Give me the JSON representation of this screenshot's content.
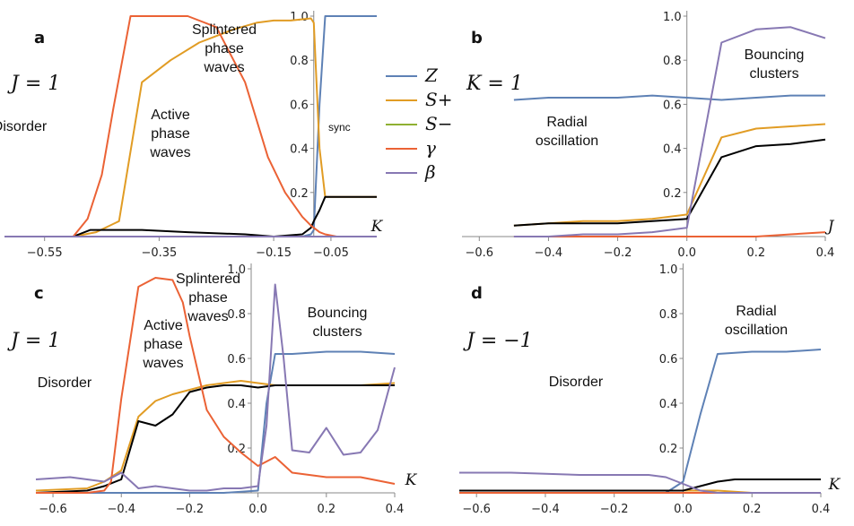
{
  "legend": {
    "items": [
      {
        "key": "Z",
        "label": "Z",
        "color": "#5e81b5"
      },
      {
        "key": "Sp",
        "label": "S+",
        "color": "#e19c24"
      },
      {
        "key": "Sm",
        "label": "S−",
        "color": "#8fb032"
      },
      {
        "key": "gamma",
        "label": "γ",
        "color": "#eb6235"
      },
      {
        "key": "beta",
        "label": "β",
        "color": "#8778b3"
      }
    ]
  },
  "chart_data": [
    {
      "panel": "a",
      "type": "line",
      "param_text": "J = 1",
      "xlabel": "K",
      "xlim": [
        -0.62,
        0.03
      ],
      "ylim": [
        0,
        1.0
      ],
      "xticks": [
        -0.55,
        -0.35,
        -0.15,
        -0.05
      ],
      "xtick_labels": [
        "−0.55",
        "−0.35",
        "−0.15",
        "−0.05"
      ],
      "yticks": [
        0.2,
        0.4,
        0.6,
        0.8,
        1.0
      ],
      "ytick_labels": [
        "0.2",
        "0.4",
        "0.6",
        "0.8",
        "1.0"
      ],
      "yaxis_at": -0.08,
      "annotations": [
        {
          "text": [
            "Disorder"
          ]
        },
        {
          "text": [
            "Active",
            "phase",
            "waves"
          ]
        },
        {
          "text": [
            "Splintered",
            "phase",
            "waves"
          ]
        },
        {
          "text": [
            "sync"
          ]
        }
      ],
      "series": [
        {
          "name": "Z",
          "x": [
            -0.62,
            -0.55,
            -0.5,
            -0.45,
            -0.4,
            -0.3,
            -0.2,
            -0.15,
            -0.1,
            -0.085,
            -0.08,
            -0.07,
            -0.06,
            -0.05,
            0.0,
            0.03
          ],
          "y": [
            0,
            0,
            0,
            0,
            0,
            0,
            0,
            0,
            0,
            0.01,
            0.03,
            0.6,
            1.0,
            1.0,
            1.0,
            1.0
          ]
        },
        {
          "name": "S+",
          "x": [
            -0.62,
            -0.5,
            -0.46,
            -0.42,
            -0.38,
            -0.33,
            -0.28,
            -0.22,
            -0.18,
            -0.15,
            -0.12,
            -0.085,
            -0.08,
            -0.07,
            -0.06,
            -0.04,
            0.0,
            0.03
          ],
          "y": [
            0,
            0,
            0.02,
            0.07,
            0.7,
            0.8,
            0.88,
            0.94,
            0.97,
            0.98,
            0.98,
            0.99,
            0.97,
            0.4,
            0.18,
            0.18,
            0.18,
            0.18
          ]
        },
        {
          "name": "S-",
          "x": [
            -0.62,
            -0.5,
            -0.47,
            -0.42,
            -0.38,
            -0.3,
            -0.2,
            -0.15,
            -0.1,
            -0.085,
            -0.08,
            -0.07,
            -0.06,
            -0.04,
            0.0,
            0.03
          ],
          "y": [
            0,
            0,
            0.03,
            0.03,
            0.03,
            0.02,
            0.01,
            0.0,
            0.01,
            0.04,
            0.07,
            0.12,
            0.18,
            0.18,
            0.18,
            0.18
          ]
        },
        {
          "name": "γ",
          "x": [
            -0.62,
            -0.5,
            -0.475,
            -0.45,
            -0.43,
            -0.4,
            -0.37,
            -0.3,
            -0.25,
            -0.2,
            -0.16,
            -0.13,
            -0.1,
            -0.085,
            -0.07,
            -0.06,
            -0.04,
            -0.02,
            0.0,
            0.03
          ],
          "y": [
            0,
            0,
            0.08,
            0.28,
            0.58,
            1.0,
            1.0,
            1.0,
            0.95,
            0.7,
            0.36,
            0.2,
            0.09,
            0.05,
            0.02,
            0.01,
            0,
            0,
            0,
            0
          ]
        },
        {
          "name": "β",
          "x": [
            -0.62,
            0.03
          ],
          "y": [
            0,
            0
          ]
        }
      ]
    },
    {
      "panel": "b",
      "type": "line",
      "param_text": "K = 1",
      "xlabel": "J",
      "xlim": [
        -0.65,
        0.4
      ],
      "ylim": [
        0,
        1.0
      ],
      "xticks": [
        -0.6,
        -0.4,
        -0.2,
        0.0,
        0.2,
        0.4
      ],
      "xtick_labels": [
        "−0.6",
        "−0.4",
        "−0.2",
        "0.0",
        "0.2",
        "0.4"
      ],
      "yticks": [
        0.2,
        0.4,
        0.6,
        0.8,
        1.0
      ],
      "ytick_labels": [
        "0.2",
        "0.4",
        "0.6",
        "0.8",
        "1.0"
      ],
      "yaxis_at": 0.0,
      "annotations": [
        {
          "text": [
            "Radial",
            "oscillation"
          ]
        },
        {
          "text": [
            "Bouncing",
            "clusters"
          ]
        }
      ],
      "series": [
        {
          "name": "Z",
          "x": [
            -0.5,
            -0.4,
            -0.3,
            -0.2,
            -0.1,
            0.0,
            0.1,
            0.2,
            0.3,
            0.4
          ],
          "y": [
            0.62,
            0.63,
            0.63,
            0.63,
            0.64,
            0.63,
            0.62,
            0.63,
            0.64,
            0.64
          ]
        },
        {
          "name": "S+",
          "x": [
            -0.5,
            -0.4,
            -0.3,
            -0.2,
            -0.1,
            0.0,
            0.1,
            0.2,
            0.3,
            0.4
          ],
          "y": [
            0.05,
            0.06,
            0.07,
            0.07,
            0.08,
            0.1,
            0.45,
            0.49,
            0.5,
            0.51
          ]
        },
        {
          "name": "S-",
          "x": [
            -0.5,
            -0.4,
            -0.3,
            -0.2,
            -0.1,
            0.0,
            0.1,
            0.2,
            0.3,
            0.4
          ],
          "y": [
            0.05,
            0.06,
            0.06,
            0.06,
            0.07,
            0.08,
            0.36,
            0.41,
            0.42,
            0.44
          ]
        },
        {
          "name": "γ",
          "x": [
            -0.5,
            -0.4,
            -0.3,
            -0.2,
            -0.1,
            0.0,
            0.1,
            0.2,
            0.3,
            0.4
          ],
          "y": [
            0,
            0,
            0,
            0,
            0,
            0,
            0,
            0,
            0.01,
            0.02
          ]
        },
        {
          "name": "β",
          "x": [
            -0.5,
            -0.4,
            -0.3,
            -0.2,
            -0.1,
            0.0,
            0.1,
            0.2,
            0.3,
            0.4
          ],
          "y": [
            0,
            0,
            0.01,
            0.01,
            0.02,
            0.04,
            0.88,
            0.94,
            0.95,
            0.9
          ]
        }
      ]
    },
    {
      "panel": "c",
      "type": "line",
      "param_text": "J = 1",
      "xlabel": "K",
      "xlim": [
        -0.65,
        0.4
      ],
      "ylim": [
        0,
        1.0
      ],
      "xticks": [
        -0.6,
        -0.4,
        -0.2,
        0.0,
        0.2,
        0.4
      ],
      "xtick_labels": [
        "−0.6",
        "−0.4",
        "−0.2",
        "0.0",
        "0.2",
        "0.4"
      ],
      "yticks": [
        0.2,
        0.4,
        0.6,
        0.8,
        1.0
      ],
      "ytick_labels": [
        "0.2",
        "0.4",
        "0.6",
        "0.8",
        "1.0"
      ],
      "yaxis_at": -0.02,
      "annotations": [
        {
          "text": [
            "Disorder"
          ]
        },
        {
          "text": [
            "Active",
            "phase",
            "waves"
          ]
        },
        {
          "text": [
            "Splintered",
            "phase",
            "waves"
          ]
        },
        {
          "text": [
            "Bouncing",
            "clusters"
          ]
        }
      ],
      "series": [
        {
          "name": "Z",
          "x": [
            -0.65,
            -0.5,
            -0.4,
            -0.3,
            -0.2,
            -0.1,
            0.0,
            0.025,
            0.05,
            0.1,
            0.2,
            0.3,
            0.4
          ],
          "y": [
            0,
            0,
            0,
            0,
            0,
            0,
            0.01,
            0.4,
            0.62,
            0.62,
            0.63,
            0.63,
            0.62
          ]
        },
        {
          "name": "S+",
          "x": [
            -0.65,
            -0.5,
            -0.45,
            -0.4,
            -0.35,
            -0.3,
            -0.25,
            -0.2,
            -0.15,
            -0.1,
            -0.05,
            0.0,
            0.05,
            0.1,
            0.2,
            0.3,
            0.4
          ],
          "y": [
            0.01,
            0.02,
            0.05,
            0.1,
            0.34,
            0.41,
            0.44,
            0.46,
            0.48,
            0.49,
            0.5,
            0.49,
            0.48,
            0.48,
            0.48,
            0.48,
            0.49
          ]
        },
        {
          "name": "S-",
          "x": [
            -0.65,
            -0.5,
            -0.45,
            -0.4,
            -0.35,
            -0.3,
            -0.25,
            -0.2,
            -0.15,
            -0.1,
            -0.05,
            0.0,
            0.05,
            0.1,
            0.2,
            0.3,
            0.4
          ],
          "y": [
            0.0,
            0.01,
            0.03,
            0.06,
            0.32,
            0.3,
            0.35,
            0.45,
            0.47,
            0.48,
            0.48,
            0.47,
            0.48,
            0.48,
            0.48,
            0.48,
            0.48
          ]
        },
        {
          "name": "γ",
          "x": [
            -0.65,
            -0.5,
            -0.45,
            -0.43,
            -0.4,
            -0.35,
            -0.3,
            -0.25,
            -0.22,
            -0.2,
            -0.15,
            -0.1,
            -0.05,
            0.0,
            0.05,
            0.1,
            0.2,
            0.3,
            0.4
          ],
          "y": [
            0.0,
            0.0,
            0.01,
            0.05,
            0.42,
            0.92,
            0.96,
            0.95,
            0.85,
            0.7,
            0.37,
            0.25,
            0.18,
            0.12,
            0.16,
            0.09,
            0.07,
            0.07,
            0.04
          ]
        },
        {
          "name": "β",
          "x": [
            -0.65,
            -0.55,
            -0.5,
            -0.45,
            -0.4,
            -0.35,
            -0.3,
            -0.25,
            -0.2,
            -0.15,
            -0.1,
            -0.05,
            0.0,
            0.025,
            0.05,
            0.075,
            0.1,
            0.15,
            0.2,
            0.25,
            0.3,
            0.35,
            0.4
          ],
          "y": [
            0.06,
            0.07,
            0.06,
            0.05,
            0.09,
            0.02,
            0.03,
            0.02,
            0.01,
            0.01,
            0.02,
            0.02,
            0.03,
            0.3,
            0.93,
            0.6,
            0.19,
            0.18,
            0.29,
            0.17,
            0.18,
            0.28,
            0.56
          ]
        }
      ]
    },
    {
      "panel": "d",
      "type": "line",
      "param_text": "J = −1",
      "xlabel": "K",
      "xlim": [
        -0.65,
        0.4
      ],
      "ylim": [
        0,
        1.0
      ],
      "xticks": [
        -0.6,
        -0.4,
        -0.2,
        0.0,
        0.2,
        0.4
      ],
      "xtick_labels": [
        "−0.6",
        "−0.4",
        "−0.2",
        "0.0",
        "0.2",
        "0.4"
      ],
      "yticks": [
        0.2,
        0.4,
        0.6,
        0.8,
        1.0
      ],
      "ytick_labels": [
        "0.2",
        "0.4",
        "0.6",
        "0.8",
        "1.0"
      ],
      "yaxis_at": 0.0,
      "annotations": [
        {
          "text": [
            "Disorder"
          ]
        },
        {
          "text": [
            "Radial",
            "oscillation"
          ]
        }
      ],
      "series": [
        {
          "name": "Z",
          "x": [
            -0.65,
            -0.5,
            -0.3,
            -0.1,
            -0.05,
            0.0,
            0.05,
            0.1,
            0.2,
            0.3,
            0.4
          ],
          "y": [
            0,
            0,
            0,
            0,
            0.0,
            0.05,
            0.35,
            0.62,
            0.63,
            0.63,
            0.64
          ]
        },
        {
          "name": "S+",
          "x": [
            -0.65,
            -0.3,
            0.0,
            0.1,
            0.2,
            0.4
          ],
          "y": [
            0.01,
            0.01,
            0.01,
            0.01,
            0.0,
            0.0
          ]
        },
        {
          "name": "S-",
          "x": [
            -0.65,
            -0.3,
            -0.1,
            0.0,
            0.05,
            0.1,
            0.15,
            0.2,
            0.3,
            0.4
          ],
          "y": [
            0.01,
            0.01,
            0.01,
            0.01,
            0.03,
            0.05,
            0.06,
            0.06,
            0.06,
            0.06
          ]
        },
        {
          "name": "γ",
          "x": [
            -0.65,
            0.4
          ],
          "y": [
            0.0,
            0.0
          ]
        },
        {
          "name": "β",
          "x": [
            -0.65,
            -0.5,
            -0.3,
            -0.1,
            -0.05,
            0.0,
            0.05,
            0.1,
            0.2,
            0.3,
            0.4
          ],
          "y": [
            0.09,
            0.09,
            0.08,
            0.08,
            0.07,
            0.04,
            0.01,
            0.0,
            0.0,
            0.0,
            0.0
          ]
        }
      ]
    }
  ]
}
